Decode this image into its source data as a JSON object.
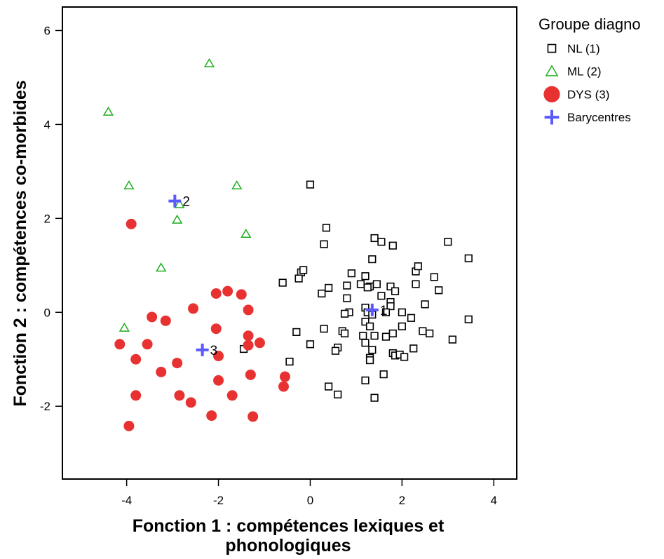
{
  "chart_data": {
    "type": "scatter",
    "xlabel": [
      "Fonction 1 : compétences lexiques et",
      "phonologiques"
    ],
    "ylabel": "Fonction 2 : compétences co-morbides",
    "xlim": [
      -5.4,
      4.5
    ],
    "ylim": [
      -3.55,
      6.5
    ],
    "xticks": [
      -4,
      -2,
      0,
      2,
      4
    ],
    "yticks": [
      -2,
      0,
      2,
      4,
      6
    ],
    "grid": false,
    "legend_position": "top-right outside plot",
    "legend_title": "Groupe diagno",
    "series": [
      {
        "name": "NL (1)",
        "marker": "open-square",
        "color": "#000000",
        "points": [
          [
            0.0,
            2.72
          ],
          [
            0.35,
            1.8
          ],
          [
            0.3,
            1.45
          ],
          [
            -0.6,
            0.63
          ],
          [
            -0.2,
            0.85
          ],
          [
            -0.15,
            0.9
          ],
          [
            -0.25,
            0.72
          ],
          [
            0.4,
            0.52
          ],
          [
            0.25,
            0.4
          ],
          [
            0.8,
            0.57
          ],
          [
            0.8,
            0.3
          ],
          [
            0.85,
            0.0
          ],
          [
            0.75,
            -0.03
          ],
          [
            0.9,
            0.83
          ],
          [
            1.1,
            0.6
          ],
          [
            1.2,
            0.77
          ],
          [
            1.3,
            0.55
          ],
          [
            1.25,
            0.53
          ],
          [
            1.35,
            1.13
          ],
          [
            1.4,
            1.58
          ],
          [
            1.55,
            1.5
          ],
          [
            1.8,
            1.42
          ],
          [
            1.45,
            0.6
          ],
          [
            1.55,
            0.35
          ],
          [
            1.75,
            0.55
          ],
          [
            1.75,
            0.22
          ],
          [
            1.75,
            0.13
          ],
          [
            1.85,
            0.45
          ],
          [
            1.65,
            0.0
          ],
          [
            1.2,
            0.1
          ],
          [
            1.25,
            0.0
          ],
          [
            1.2,
            -0.2
          ],
          [
            1.3,
            -0.3
          ],
          [
            1.35,
            -0.05
          ],
          [
            1.4,
            -0.5
          ],
          [
            1.35,
            -0.8
          ],
          [
            1.3,
            -0.97
          ],
          [
            1.3,
            -1.02
          ],
          [
            1.15,
            -0.5
          ],
          [
            1.2,
            -0.65
          ],
          [
            1.65,
            -0.52
          ],
          [
            1.8,
            -0.45
          ],
          [
            1.8,
            -0.87
          ],
          [
            1.85,
            -0.92
          ],
          [
            1.95,
            -0.9
          ],
          [
            2.0,
            -0.3
          ],
          [
            2.0,
            0.0
          ],
          [
            2.2,
            -0.12
          ],
          [
            2.3,
            0.6
          ],
          [
            2.3,
            0.87
          ],
          [
            2.35,
            0.98
          ],
          [
            2.5,
            0.17
          ],
          [
            2.45,
            -0.4
          ],
          [
            2.6,
            -0.45
          ],
          [
            2.7,
            0.75
          ],
          [
            2.8,
            0.47
          ],
          [
            3.0,
            1.5
          ],
          [
            3.45,
            1.15
          ],
          [
            3.45,
            -0.15
          ],
          [
            3.1,
            -0.58
          ],
          [
            2.25,
            -0.77
          ],
          [
            2.05,
            -0.95
          ],
          [
            1.6,
            -1.32
          ],
          [
            1.2,
            -1.45
          ],
          [
            1.4,
            -1.82
          ],
          [
            0.4,
            -1.58
          ],
          [
            0.6,
            -1.75
          ],
          [
            0.6,
            -0.75
          ],
          [
            0.55,
            -0.82
          ],
          [
            0.7,
            -0.4
          ],
          [
            0.0,
            -0.68
          ],
          [
            -0.3,
            -0.42
          ],
          [
            -0.45,
            -1.05
          ],
          [
            0.3,
            -0.35
          ],
          [
            0.75,
            -0.45
          ],
          [
            -1.45,
            -0.78
          ]
        ]
      },
      {
        "name": "ML (2)",
        "marker": "open-triangle",
        "color": "#1fad1f",
        "points": [
          [
            -2.2,
            5.3
          ],
          [
            -4.4,
            4.27
          ],
          [
            -3.95,
            2.7
          ],
          [
            -1.6,
            2.7
          ],
          [
            -2.85,
            2.3
          ],
          [
            -2.9,
            1.97
          ],
          [
            -1.4,
            1.67
          ],
          [
            -3.25,
            0.95
          ],
          [
            -4.05,
            -0.33
          ]
        ]
      },
      {
        "name": "DYS (3)",
        "marker": "filled-circle",
        "color": "#e83232",
        "points": [
          [
            -3.9,
            1.88
          ],
          [
            -4.15,
            -0.68
          ],
          [
            -3.55,
            -0.68
          ],
          [
            -3.45,
            -0.1
          ],
          [
            -3.15,
            -0.18
          ],
          [
            -2.55,
            0.08
          ],
          [
            -2.05,
            0.4
          ],
          [
            -1.8,
            0.45
          ],
          [
            -1.5,
            0.38
          ],
          [
            -1.35,
            0.05
          ],
          [
            -2.05,
            -0.35
          ],
          [
            -3.8,
            -1.0
          ],
          [
            -3.25,
            -1.27
          ],
          [
            -2.9,
            -1.08
          ],
          [
            -2.0,
            -0.93
          ],
          [
            -1.35,
            -0.5
          ],
          [
            -1.35,
            -0.7
          ],
          [
            -1.1,
            -0.65
          ],
          [
            -1.3,
            -1.33
          ],
          [
            -2.0,
            -1.45
          ],
          [
            -3.8,
            -1.77
          ],
          [
            -2.85,
            -1.77
          ],
          [
            -2.6,
            -1.92
          ],
          [
            -2.15,
            -2.2
          ],
          [
            -1.7,
            -1.77
          ],
          [
            -1.25,
            -2.22
          ],
          [
            -3.95,
            -2.42
          ],
          [
            -0.55,
            -1.37
          ],
          [
            -0.58,
            -1.58
          ]
        ]
      },
      {
        "name": "Barycentres",
        "marker": "plus",
        "color": "#5a5aff",
        "points": [
          [
            1.35,
            0.05,
            "1"
          ],
          [
            -2.95,
            2.37,
            "2"
          ],
          [
            -2.35,
            -0.8,
            "3"
          ]
        ]
      }
    ]
  }
}
